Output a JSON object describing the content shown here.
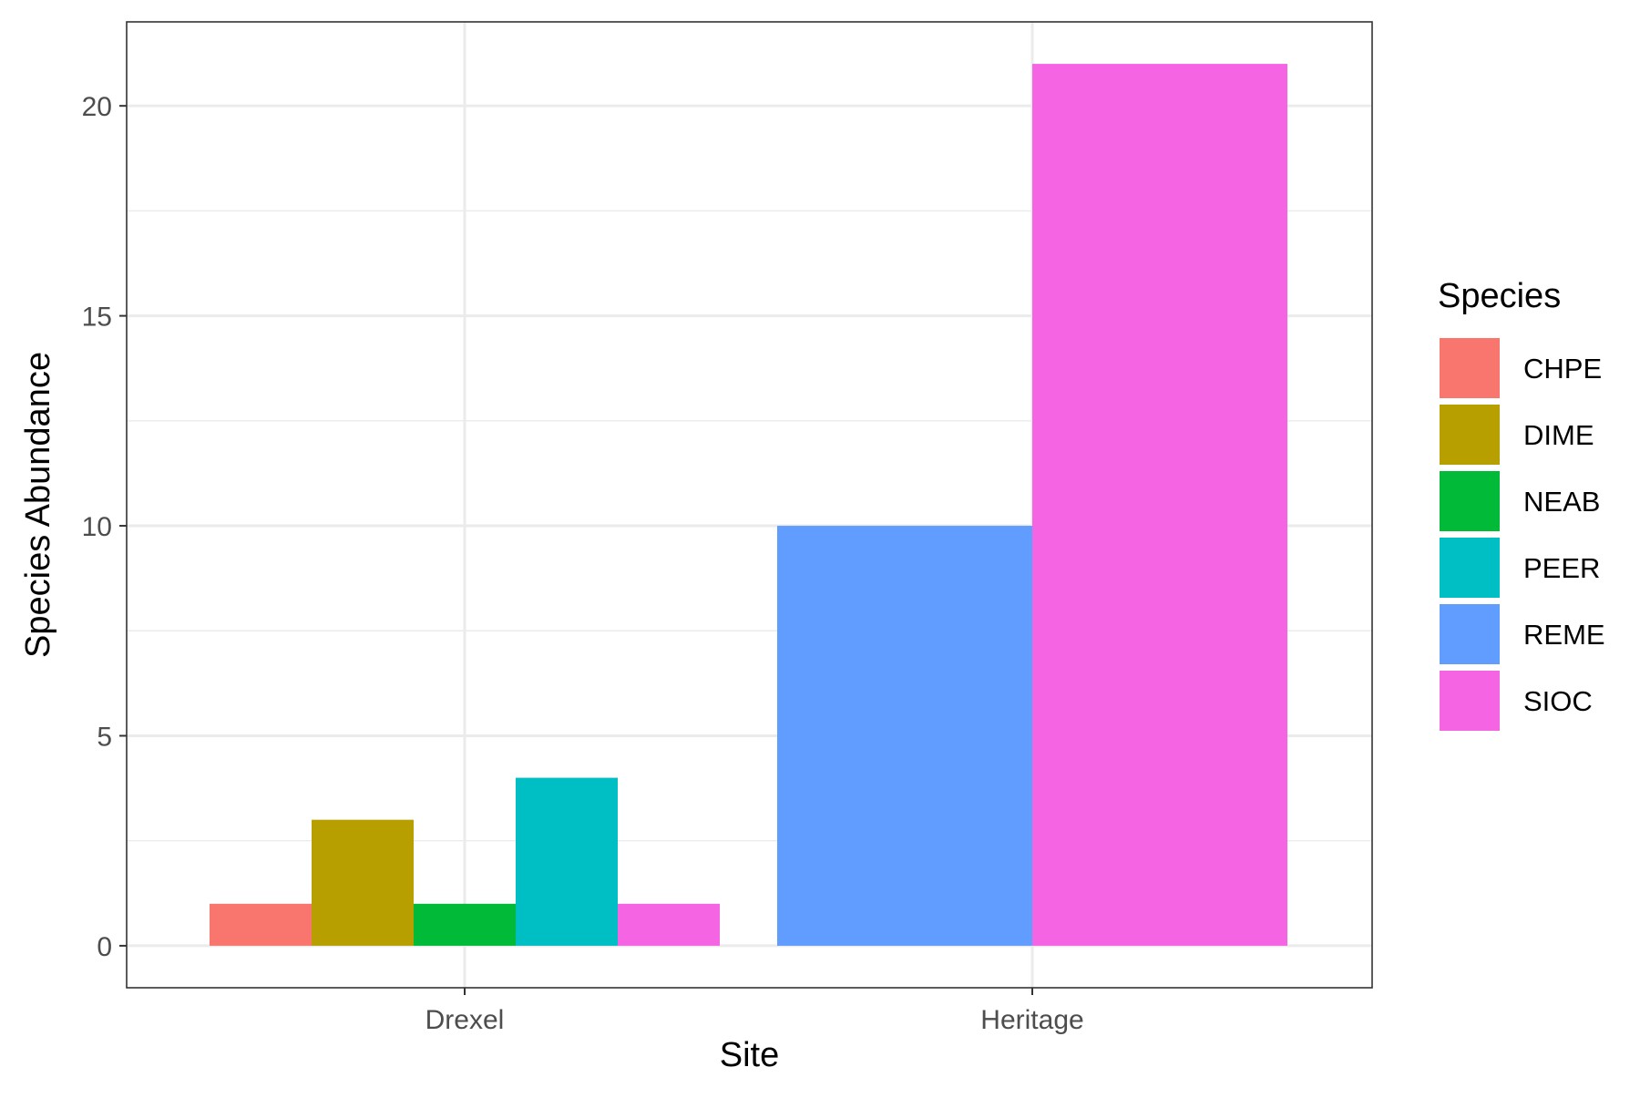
{
  "chart_data": {
    "type": "bar",
    "xlabel": "Site",
    "ylabel": "Species Abundance",
    "categories": [
      "Drexel",
      "Heritage"
    ],
    "ylim": [
      -1,
      22
    ],
    "yticks": [
      0,
      5,
      10,
      15,
      20
    ],
    "grid": true,
    "legend": {
      "title": "Species",
      "position": "right",
      "entries": [
        {
          "label": "CHPE",
          "color": "#F8766D"
        },
        {
          "label": "DIME",
          "color": "#B79F00"
        },
        {
          "label": "NEAB",
          "color": "#00BA38"
        },
        {
          "label": "PEER",
          "color": "#00BFC4"
        },
        {
          "label": "REME",
          "color": "#619CFF"
        },
        {
          "label": "SIOC",
          "color": "#F564E3"
        }
      ]
    },
    "groups": [
      {
        "category": "Drexel",
        "bars": [
          {
            "species": "CHPE",
            "value": 1
          },
          {
            "species": "DIME",
            "value": 3
          },
          {
            "species": "NEAB",
            "value": 1
          },
          {
            "species": "PEER",
            "value": 4
          },
          {
            "species": "SIOC",
            "value": 1
          }
        ]
      },
      {
        "category": "Heritage",
        "bars": [
          {
            "species": "REME",
            "value": 10
          },
          {
            "species": "SIOC",
            "value": 21
          }
        ]
      }
    ]
  }
}
